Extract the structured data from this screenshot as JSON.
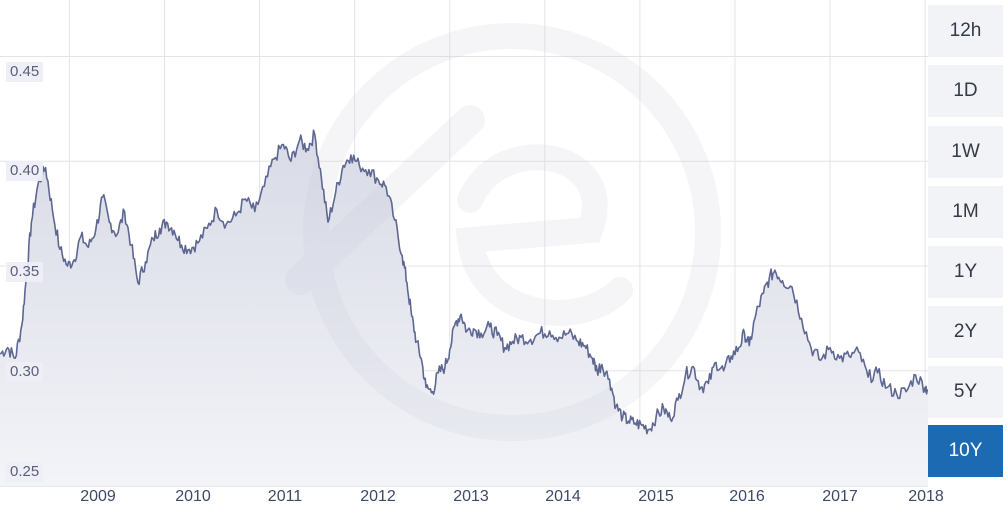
{
  "periods": [
    {
      "label": "12h",
      "active": false
    },
    {
      "label": "1D",
      "active": false
    },
    {
      "label": "1W",
      "active": false
    },
    {
      "label": "1M",
      "active": false
    },
    {
      "label": "1Y",
      "active": false
    },
    {
      "label": "2Y",
      "active": false
    },
    {
      "label": "5Y",
      "active": false
    },
    {
      "label": "10Y",
      "active": true
    }
  ],
  "chart_data": {
    "type": "area",
    "title": "",
    "xlabel": "",
    "ylabel": "",
    "x_ticks": [
      "2009",
      "2010",
      "2011",
      "2012",
      "2013",
      "2014",
      "2015",
      "2016",
      "2017",
      "2018"
    ],
    "y_ticks": [
      "0.45",
      "0.40",
      "0.35",
      "0.30",
      "0.25"
    ],
    "xlim": [
      2008.27,
      2018.03
    ],
    "ylim": [
      0.245,
      0.477
    ],
    "grid": true,
    "colors": {
      "line": "#5d6791",
      "fill_top": "#d8dae6",
      "fill_bottom": "#f3f4f8",
      "grid": "#e3e4ea",
      "active": "#1c6bb2"
    },
    "series": [
      {
        "x": [
          2008.27,
          2008.35,
          2008.43,
          2008.5,
          2008.55,
          2008.6,
          2008.67,
          2008.75,
          2008.82,
          2008.9,
          2008.98,
          2009.05,
          2009.12,
          2009.2,
          2009.28,
          2009.35,
          2009.42,
          2009.5,
          2009.58,
          2009.65,
          2009.72,
          2009.8,
          2009.88,
          2009.95,
          2010.02,
          2010.1,
          2010.18,
          2010.26,
          2010.35,
          2010.45,
          2010.55,
          2010.65,
          2010.75,
          2010.85,
          2010.95,
          2011.05,
          2011.15,
          2011.25,
          2011.33,
          2011.42,
          2011.5,
          2011.58,
          2011.65,
          2011.72,
          2011.8,
          2011.88,
          2011.96,
          2012.05,
          2012.15,
          2012.25,
          2012.33,
          2012.42,
          2012.5,
          2012.55,
          2012.6,
          2012.65,
          2012.7,
          2012.75,
          2012.82,
          2012.88,
          2012.95,
          2013.0,
          2013.06,
          2013.12,
          2013.18,
          2013.25,
          2013.33,
          2013.42,
          2013.5,
          2013.58,
          2013.66,
          2013.75,
          2013.85,
          2013.95,
          2014.05,
          2014.15,
          2014.25,
          2014.35,
          2014.42,
          2014.5,
          2014.55,
          2014.6,
          2014.68,
          2014.75,
          2014.82,
          2014.88,
          2014.95,
          2015.02,
          2015.1,
          2015.17,
          2015.25,
          2015.32,
          2015.4,
          2015.48,
          2015.56,
          2015.64,
          2015.72,
          2015.8,
          2015.88,
          2015.96,
          2016.04,
          2016.1,
          2016.15,
          2016.22,
          2016.3,
          2016.36,
          2016.42,
          2016.5,
          2016.6,
          2016.7,
          2016.8,
          2016.9,
          2017.0,
          2017.1,
          2017.2,
          2017.3,
          2017.4,
          2017.5,
          2017.6,
          2017.7,
          2017.8,
          2017.9,
          2018.0,
          2018.03
        ],
        "y": [
          0.308,
          0.311,
          0.306,
          0.322,
          0.346,
          0.371,
          0.389,
          0.397,
          0.377,
          0.358,
          0.35,
          0.353,
          0.364,
          0.359,
          0.368,
          0.383,
          0.371,
          0.365,
          0.376,
          0.36,
          0.342,
          0.352,
          0.363,
          0.368,
          0.371,
          0.367,
          0.36,
          0.358,
          0.361,
          0.368,
          0.377,
          0.37,
          0.374,
          0.382,
          0.376,
          0.388,
          0.401,
          0.408,
          0.4,
          0.41,
          0.406,
          0.413,
          0.392,
          0.371,
          0.385,
          0.398,
          0.403,
          0.398,
          0.396,
          0.391,
          0.388,
          0.372,
          0.355,
          0.342,
          0.326,
          0.314,
          0.306,
          0.292,
          0.29,
          0.299,
          0.302,
          0.31,
          0.323,
          0.327,
          0.319,
          0.32,
          0.318,
          0.321,
          0.317,
          0.311,
          0.314,
          0.316,
          0.315,
          0.318,
          0.319,
          0.316,
          0.318,
          0.314,
          0.312,
          0.306,
          0.3,
          0.303,
          0.296,
          0.283,
          0.278,
          0.276,
          0.275,
          0.274,
          0.272,
          0.278,
          0.282,
          0.277,
          0.286,
          0.298,
          0.302,
          0.292,
          0.294,
          0.304,
          0.3,
          0.307,
          0.311,
          0.318,
          0.312,
          0.327,
          0.337,
          0.344,
          0.348,
          0.343,
          0.34,
          0.325,
          0.311,
          0.305,
          0.311,
          0.306,
          0.307,
          0.309,
          0.297,
          0.299,
          0.292,
          0.289,
          0.29,
          0.298,
          0.292,
          0.291
        ]
      }
    ]
  }
}
